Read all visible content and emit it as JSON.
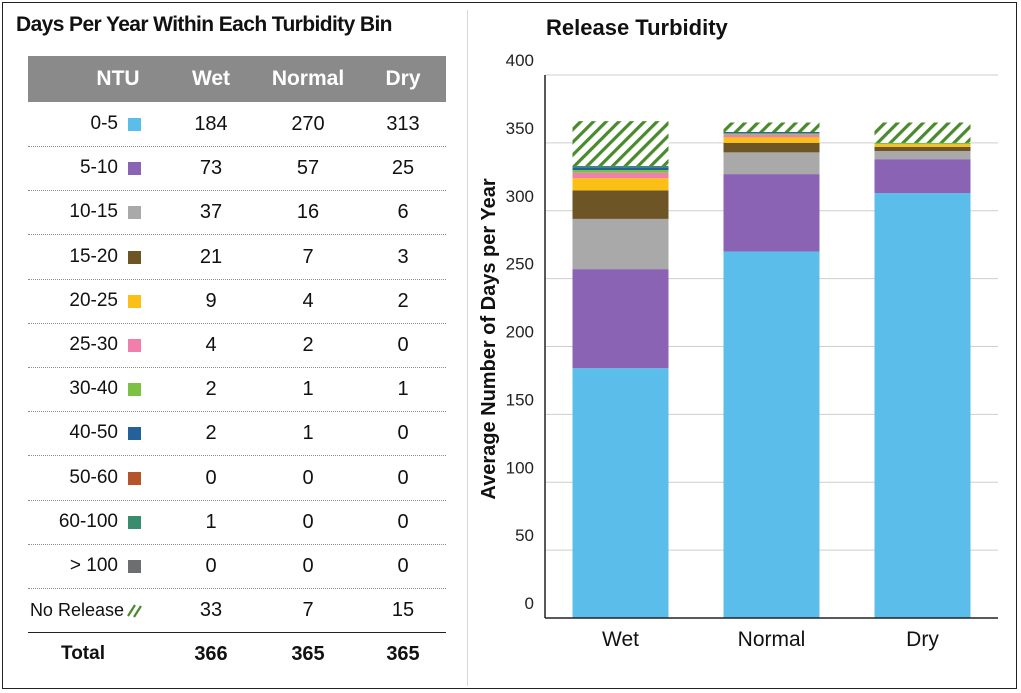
{
  "table": {
    "title": "Days Per Year Within Each Turbidity Bin",
    "headers": {
      "ntu": "NTU",
      "wet": "Wet",
      "normal": "Normal",
      "dry": "Dry"
    },
    "rows": [
      {
        "bin": "0-5",
        "color": "#5bbde9",
        "wet": "184",
        "normal": "270",
        "dry": "313"
      },
      {
        "bin": "5-10",
        "color": "#8a63b5",
        "wet": "73",
        "normal": "57",
        "dry": "25"
      },
      {
        "bin": "10-15",
        "color": "#a9a9a9",
        "wet": "37",
        "normal": "16",
        "dry": "6"
      },
      {
        "bin": "15-20",
        "color": "#6e5526",
        "wet": "21",
        "normal": "7",
        "dry": "3"
      },
      {
        "bin": "20-25",
        "color": "#fbbf16",
        "wet": "9",
        "normal": "4",
        "dry": "2"
      },
      {
        "bin": "25-30",
        "color": "#f07fab",
        "wet": "4",
        "normal": "2",
        "dry": "0"
      },
      {
        "bin": "30-40",
        "color": "#7cc142",
        "wet": "2",
        "normal": "1",
        "dry": "1"
      },
      {
        "bin": "40-50",
        "color": "#24609a",
        "wet": "2",
        "normal": "1",
        "dry": "0"
      },
      {
        "bin": "50-60",
        "color": "#b5532b",
        "wet": "0",
        "normal": "0",
        "dry": "0"
      },
      {
        "bin": "60-100",
        "color": "#3a8c6e",
        "wet": "1",
        "normal": "0",
        "dry": "0"
      },
      {
        "bin": "> 100",
        "color": "#6d6e70",
        "wet": "0",
        "normal": "0",
        "dry": "0"
      },
      {
        "bin": "No Release",
        "color": "#4b8a2c",
        "wet": "33",
        "normal": "7",
        "dry": "15"
      }
    ],
    "total": {
      "label": "Total",
      "wet": "366",
      "normal": "365",
      "dry": "365"
    }
  },
  "chart_data": {
    "type": "bar",
    "stacked": true,
    "title": "Release Turbidity",
    "ylabel": "Average Number of Days per Year",
    "xlabel": "",
    "categories": [
      "Wet",
      "Normal",
      "Dry"
    ],
    "ylim": [
      0,
      400
    ],
    "yticks": [
      0,
      50,
      100,
      150,
      200,
      250,
      300,
      350,
      400
    ],
    "grid": true,
    "legend": "none",
    "series": [
      {
        "name": "0-5",
        "color": "#5bbde9",
        "values": [
          184,
          270,
          313
        ]
      },
      {
        "name": "5-10",
        "color": "#8a63b5",
        "values": [
          73,
          57,
          25
        ]
      },
      {
        "name": "10-15",
        "color": "#a9a9a9",
        "values": [
          37,
          16,
          6
        ]
      },
      {
        "name": "15-20",
        "color": "#6e5526",
        "values": [
          21,
          7,
          3
        ]
      },
      {
        "name": "20-25",
        "color": "#fbbf16",
        "values": [
          9,
          4,
          2
        ]
      },
      {
        "name": "25-30",
        "color": "#f07fab",
        "values": [
          4,
          2,
          0
        ]
      },
      {
        "name": "30-40",
        "color": "#7cc142",
        "values": [
          2,
          1,
          1
        ]
      },
      {
        "name": "40-50",
        "color": "#24609a",
        "values": [
          2,
          1,
          0
        ]
      },
      {
        "name": "50-60",
        "color": "#b5532b",
        "values": [
          0,
          0,
          0
        ]
      },
      {
        "name": "60-100",
        "color": "#3a8c6e",
        "values": [
          1,
          0,
          0
        ]
      },
      {
        "name": "> 100",
        "color": "#6d6e70",
        "values": [
          0,
          0,
          0
        ]
      },
      {
        "name": "No Release",
        "color": "#4b8a2c",
        "pattern": "hatch",
        "values": [
          33,
          7,
          15
        ]
      }
    ]
  }
}
